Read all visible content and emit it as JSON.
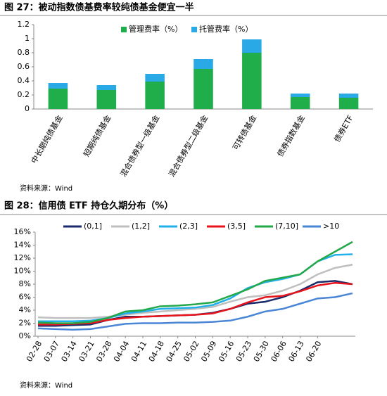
{
  "chart_data": [
    {
      "type": "bar",
      "stacked": true,
      "title": "图 27：被动指数债基费率较纯债基金便宜一半",
      "source": "资料来源：Wind",
      "categories": [
        "中长期纯债基金",
        "短期纯债基金",
        "混合债券型一级基金",
        "混合债券型二级基金",
        "可转债基金",
        "债券指数基金",
        "债券ETF"
      ],
      "series": [
        {
          "name": "管理费率（%）",
          "color": "#1fae4a",
          "values": [
            0.29,
            0.27,
            0.39,
            0.57,
            0.8,
            0.17,
            0.16
          ]
        },
        {
          "name": "托管费率（%）",
          "color": "#29a9e6",
          "values": [
            0.08,
            0.07,
            0.11,
            0.14,
            0.19,
            0.05,
            0.06
          ]
        }
      ],
      "ylim": [
        0,
        1.2
      ],
      "yticks": [
        0,
        0.2,
        0.4,
        0.6,
        0.8,
        1,
        1.2
      ],
      "grid": false
    },
    {
      "type": "line",
      "title": "图 28：信用债 ETF 持仓久期分布（%）",
      "source": "资料来源：Wind",
      "categories": [
        "02-28",
        "03-07",
        "03-14",
        "03-21",
        "03-28",
        "04-04",
        "04-11",
        "04-18",
        "04-25",
        "05-02",
        "05-09",
        "05-16",
        "05-23",
        "05-30",
        "06-06",
        "06-13",
        "06-20",
        null,
        null
      ],
      "series": [
        {
          "name": "(0,1]",
          "color": "#1b2a6b",
          "values": [
            1.6,
            1.6,
            1.7,
            1.8,
            2.5,
            3.0,
            3.0,
            3.1,
            3.2,
            3.3,
            3.6,
            4.2,
            5.0,
            5.3,
            6.0,
            7.0,
            8.3,
            8.5,
            8.0
          ]
        },
        {
          "name": "(1,2]",
          "color": "#bfbfbf",
          "values": [
            2.9,
            2.8,
            2.8,
            2.8,
            3.0,
            3.3,
            3.6,
            3.8,
            4.0,
            4.2,
            4.5,
            5.3,
            6.0,
            6.3,
            7.0,
            8.0,
            9.5,
            10.5,
            11.0
          ]
        },
        {
          "name": "(2,3]",
          "color": "#22b0e8",
          "values": [
            2.3,
            2.3,
            2.3,
            2.4,
            2.8,
            3.5,
            3.8,
            4.2,
            4.3,
            4.4,
            4.8,
            5.8,
            7.4,
            8.3,
            8.8,
            9.5,
            11.5,
            12.5,
            12.6
          ]
        },
        {
          "name": "(3,5]",
          "color": "#e8141b",
          "values": [
            1.8,
            1.8,
            1.9,
            2.0,
            2.5,
            2.8,
            3.0,
            3.1,
            3.2,
            3.3,
            3.5,
            4.2,
            5.2,
            6.0,
            6.2,
            6.9,
            7.8,
            8.2,
            8.0
          ]
        },
        {
          "name": "(7,10]",
          "color": "#23a84a",
          "values": [
            2.1,
            2.0,
            2.0,
            2.2,
            2.8,
            3.8,
            4.0,
            4.6,
            4.7,
            4.9,
            5.2,
            6.2,
            7.2,
            8.5,
            9.0,
            9.5,
            11.5,
            13.0,
            14.5
          ]
        },
        {
          "name": ">10",
          "color": "#4a86d6",
          "values": [
            1.2,
            1.1,
            1.0,
            1.1,
            1.5,
            1.9,
            2.0,
            2.0,
            2.1,
            2.1,
            2.2,
            2.4,
            3.0,
            3.8,
            4.2,
            5.0,
            5.8,
            6.0,
            6.6
          ]
        }
      ],
      "ylim": [
        0,
        16
      ],
      "yticks": [
        {
          "value": 0,
          "label": "0%"
        },
        {
          "value": 2,
          "label": "2%"
        },
        {
          "value": 4,
          "label": "4%"
        },
        {
          "value": 6,
          "label": "6%"
        },
        {
          "value": 8,
          "label": "8%"
        },
        {
          "value": 10,
          "label": "10%"
        },
        {
          "value": 12,
          "label": "12%"
        },
        {
          "value": 14,
          "label": "14%"
        },
        {
          "value": 16,
          "label": "16%"
        }
      ],
      "grid": false
    }
  ]
}
